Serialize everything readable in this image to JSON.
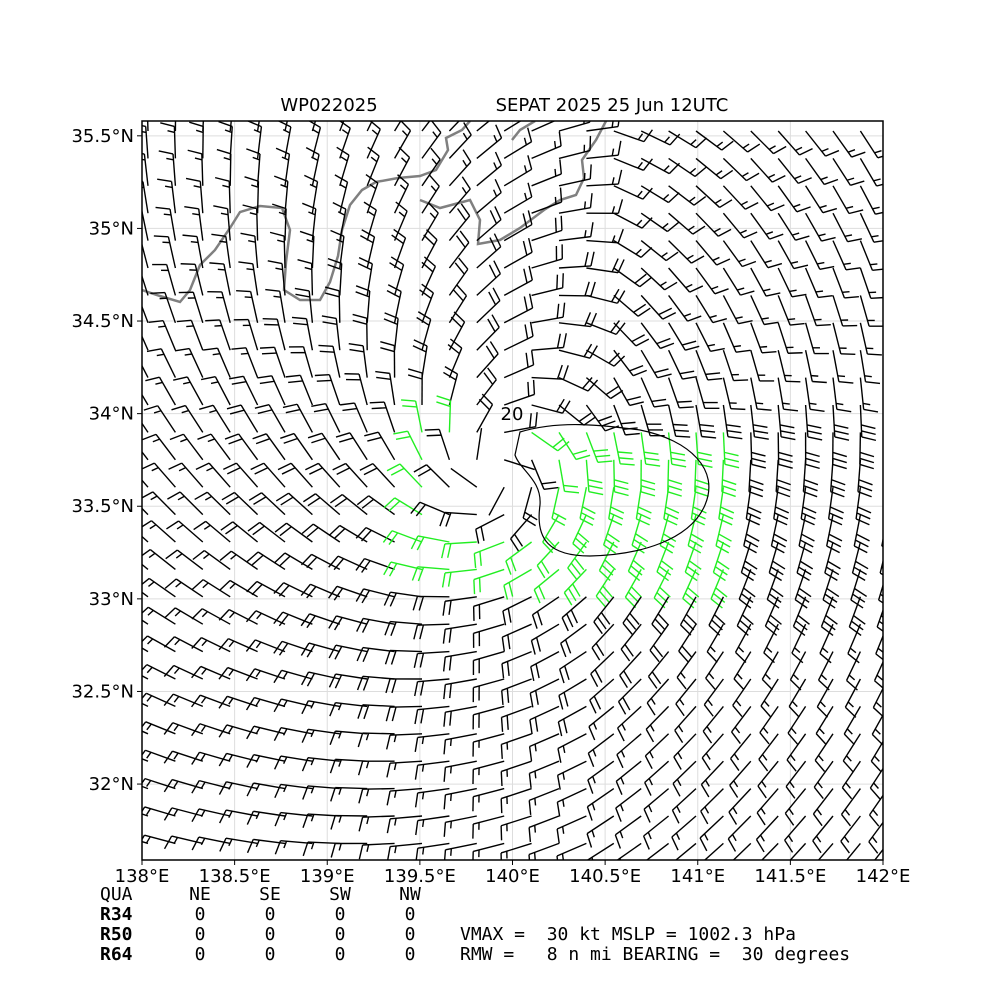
{
  "chart_data": {
    "type": "wind-barb-map",
    "title_left": "WP022025",
    "title_right": "SEPAT 2025 25 Jun 12UTC",
    "xlim": [
      138,
      142
    ],
    "ylim": [
      31.59,
      35.58
    ],
    "xticks": [
      {
        "value": 138,
        "label": "138°E"
      },
      {
        "value": 138.5,
        "label": "138.5°E"
      },
      {
        "value": 139,
        "label": "139°E"
      },
      {
        "value": 139.5,
        "label": "139.5°E"
      },
      {
        "value": 140,
        "label": "140°E"
      },
      {
        "value": 140.5,
        "label": "140.5°E"
      },
      {
        "value": 141,
        "label": "141°E"
      },
      {
        "value": 141.5,
        "label": "141.5°E"
      },
      {
        "value": 142,
        "label": "142°E"
      }
    ],
    "yticks": [
      {
        "value": 32,
        "label": "32°N"
      },
      {
        "value": 32.5,
        "label": "32.5°N"
      },
      {
        "value": 33,
        "label": "33°N"
      },
      {
        "value": 33.5,
        "label": "33.5°N"
      },
      {
        "value": 34,
        "label": "34°N"
      },
      {
        "value": 34.5,
        "label": "34.5°N"
      },
      {
        "value": 35,
        "label": "35°N"
      },
      {
        "value": 35.5,
        "label": "35.5°N"
      }
    ],
    "grid": true,
    "contour_label": "20",
    "table": {
      "header": [
        "QUA",
        "NE",
        "SE",
        "SW",
        "NW"
      ],
      "rows": [
        [
          "R34",
          "0",
          "0",
          "0",
          "0"
        ],
        [
          "R50",
          "0",
          "0",
          "0",
          "0"
        ],
        [
          "R64",
          "0",
          "0",
          "0",
          "0"
        ]
      ]
    },
    "info": [
      "VMAX =  30 kt MSLP = 1002.3 hPa",
      "RMW =   8 n mi BEARING =  30 degrees"
    ]
  }
}
